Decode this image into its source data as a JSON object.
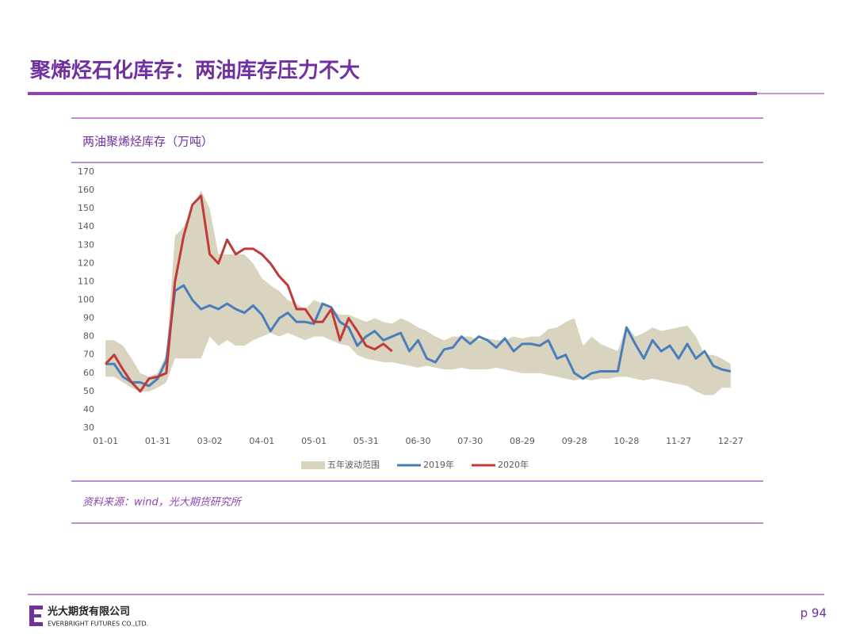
{
  "slide": {
    "title": "聚烯烃石化库存：两油库存压力不大",
    "company": "光大期货有限公司",
    "company_en": "EVERBRIGHT FUTURES CO.,LTD.",
    "page": "p 94"
  },
  "chart_data": {
    "type": "line",
    "title": "两油聚烯烃库存（万吨）",
    "source": "资料来源：wind，光大期货研究所",
    "x": [
      0,
      5,
      10,
      15,
      20,
      25,
      30,
      35,
      40,
      45,
      50,
      55,
      60,
      65,
      70,
      75,
      80,
      85,
      90,
      95,
      100,
      105,
      110,
      115,
      120,
      125,
      130,
      135,
      140,
      145,
      150,
      155,
      160,
      165,
      170,
      175,
      180,
      185,
      190,
      195,
      200,
      205,
      210,
      215,
      220,
      225,
      230,
      235,
      240,
      245,
      250,
      255,
      260,
      265,
      270,
      275,
      280,
      285,
      290,
      295,
      300,
      305,
      310,
      315,
      320,
      325,
      330,
      335,
      340,
      345,
      350,
      355,
      360
    ],
    "xlim": [
      -6,
      366
    ],
    "xticks": [
      {
        "value": 0,
        "label": "01-01"
      },
      {
        "value": 30,
        "label": "01-31"
      },
      {
        "value": 60,
        "label": "03-02"
      },
      {
        "value": 90,
        "label": "04-01"
      },
      {
        "value": 120,
        "label": "05-01"
      },
      {
        "value": 150,
        "label": "05-31"
      },
      {
        "value": 180,
        "label": "06-30"
      },
      {
        "value": 210,
        "label": "07-30"
      },
      {
        "value": 240,
        "label": "08-29"
      },
      {
        "value": 270,
        "label": "09-28"
      },
      {
        "value": 300,
        "label": "10-28"
      },
      {
        "value": 330,
        "label": "11-27"
      },
      {
        "value": 360,
        "label": "12-27"
      }
    ],
    "ylim": [
      30,
      170
    ],
    "yticks": [
      30,
      40,
      50,
      60,
      70,
      80,
      90,
      100,
      110,
      120,
      130,
      140,
      150,
      160,
      170
    ],
    "series": [
      {
        "name": "五年波动范围",
        "color": "#d9d4bf",
        "kind": "band",
        "high": [
          78,
          78,
          75,
          68,
          60,
          58,
          60,
          70,
          135,
          140,
          150,
          160,
          150,
          125,
          125,
          125,
          125,
          120,
          112,
          108,
          105,
          100,
          98,
          95,
          100,
          98,
          95,
          92,
          92,
          90,
          88,
          90,
          88,
          87,
          90,
          88,
          85,
          83,
          80,
          78,
          80,
          80,
          80,
          78,
          79,
          78,
          78,
          80,
          79,
          80,
          80,
          84,
          85,
          88,
          90,
          75,
          80,
          76,
          74,
          72,
          86,
          80,
          82,
          85,
          83,
          84,
          85,
          86,
          80,
          70,
          70,
          68,
          65
        ],
        "low": [
          58,
          58,
          55,
          52,
          50,
          50,
          52,
          55,
          68,
          68,
          68,
          68,
          80,
          75,
          78,
          75,
          75,
          78,
          80,
          82,
          80,
          82,
          80,
          78,
          80,
          80,
          78,
          76,
          75,
          70,
          68,
          67,
          66,
          66,
          65,
          64,
          63,
          64,
          63,
          62,
          62,
          63,
          62,
          62,
          62,
          63,
          62,
          61,
          60,
          60,
          60,
          59,
          58,
          57,
          56,
          57,
          56,
          57,
          57,
          58,
          58,
          57,
          56,
          57,
          56,
          55,
          54,
          53,
          50,
          48,
          48,
          52,
          52
        ]
      },
      {
        "name": "2019年",
        "color": "#4a7ebb",
        "values": [
          65,
          65,
          58,
          55,
          55,
          53,
          57,
          67,
          105,
          108,
          100,
          95,
          97,
          95,
          98,
          95,
          93,
          97,
          92,
          83,
          90,
          93,
          88,
          88,
          87,
          98,
          96,
          88,
          85,
          75,
          80,
          83,
          78,
          80,
          82,
          72,
          78,
          68,
          66,
          73,
          74,
          80,
          76,
          80,
          78,
          74,
          79,
          72,
          76,
          76,
          75,
          78,
          68,
          70,
          60,
          57,
          60,
          61,
          61,
          61,
          85,
          76,
          68,
          78,
          72,
          75,
          68,
          76,
          68,
          72,
          64,
          62,
          61
        ]
      },
      {
        "name": "2020年",
        "color": "#c0393b",
        "values": [
          65,
          70,
          62,
          55,
          50,
          57,
          58,
          60,
          110,
          135,
          152,
          157,
          125,
          120,
          133,
          125,
          128,
          128,
          125,
          120,
          113,
          108,
          95,
          95,
          88,
          88,
          95,
          78,
          90,
          83,
          75,
          73,
          76,
          72,
          null,
          null,
          null,
          null,
          null,
          null,
          null,
          null,
          null,
          null,
          null,
          null,
          null,
          null,
          null,
          null,
          null,
          null,
          null,
          null,
          null,
          null,
          null,
          null,
          null,
          null,
          null,
          null,
          null,
          null,
          null,
          null,
          null,
          null,
          null,
          null,
          null,
          null,
          null
        ]
      }
    ]
  }
}
